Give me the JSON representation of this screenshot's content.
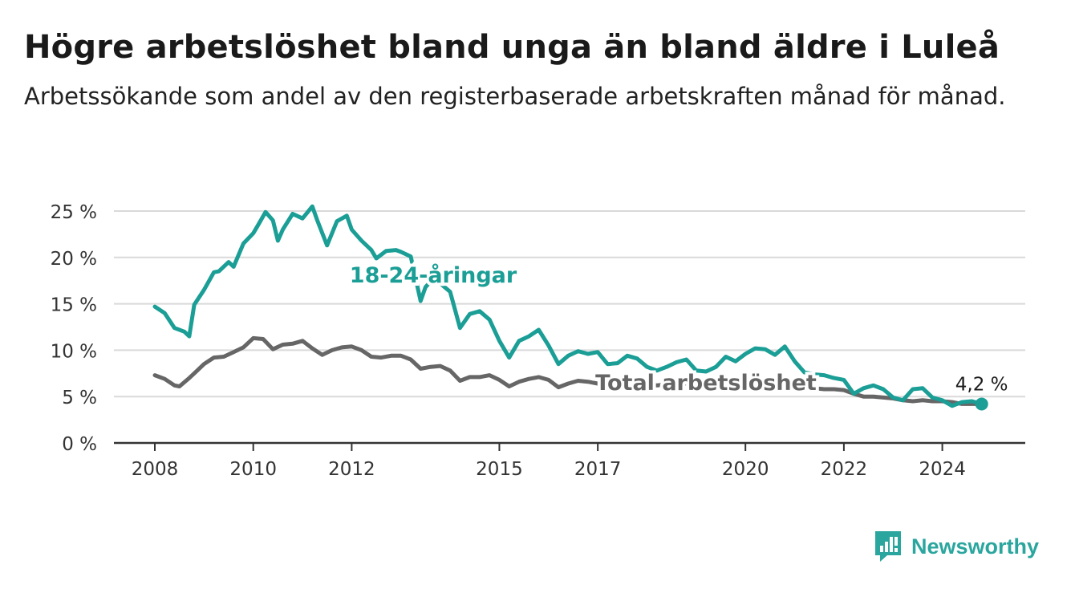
{
  "header": {
    "title": "Högre arbetslöshet bland unga än bland äldre i Luleå",
    "subtitle": "Arbetssökande som andel av den registerbaserade arbetskraften månad för månad."
  },
  "brand": {
    "name": "Newsworthy",
    "icon": "newsworthy-logo-icon",
    "color": "#2aa69e"
  },
  "chart_data": {
    "type": "line",
    "title": "Högre arbetslöshet bland unga än bland äldre i Luleå",
    "subtitle": "Arbetssökande som andel av den registerbaserade arbetskraften månad för månad.",
    "y_ticks": [
      "0 %",
      "5 %",
      "10 %",
      "15 %",
      "20 %",
      "25 %"
    ],
    "y_tick_values": [
      0,
      5,
      10,
      15,
      20,
      25
    ],
    "x_ticks": [
      "2008",
      "2010",
      "2012",
      "2015",
      "2017",
      "2020",
      "2022",
      "2024"
    ],
    "x_tick_values": [
      2008,
      2010,
      2012,
      2015,
      2017,
      2020,
      2022,
      2024
    ],
    "ylim": [
      0,
      25
    ],
    "xlim": [
      2007.2,
      2025.7
    ],
    "grid": true,
    "end_label": "4,2 %",
    "series": [
      {
        "name": "18-24-åringar",
        "color": "#1a9e96",
        "x": [
          2008.0,
          2008.2,
          2008.4,
          2008.6,
          2008.7,
          2008.8,
          2009.0,
          2009.2,
          2009.3,
          2009.5,
          2009.6,
          2009.8,
          2010.0,
          2010.1,
          2010.25,
          2010.4,
          2010.5,
          2010.6,
          2010.8,
          2011.0,
          2011.2,
          2011.3,
          2011.5,
          2011.7,
          2011.9,
          2012.0,
          2012.2,
          2012.4,
          2012.5,
          2012.7,
          2012.9,
          2013.0,
          2013.2,
          2013.4,
          2013.5,
          2013.6,
          2013.8,
          2014.0,
          2014.2,
          2014.4,
          2014.6,
          2014.8,
          2015.0,
          2015.2,
          2015.4,
          2015.6,
          2015.8,
          2016.0,
          2016.2,
          2016.4,
          2016.6,
          2016.8,
          2017.0,
          2017.2,
          2017.4,
          2017.6,
          2017.8,
          2018.0,
          2018.2,
          2018.4,
          2018.6,
          2018.8,
          2019.0,
          2019.2,
          2019.4,
          2019.6,
          2019.8,
          2020.0,
          2020.2,
          2020.4,
          2020.6,
          2020.8,
          2021.0,
          2021.2,
          2021.4,
          2021.6,
          2021.8,
          2022.0,
          2022.2,
          2022.4,
          2022.6,
          2022.8,
          2023.0,
          2023.2,
          2023.4,
          2023.6,
          2023.8,
          2024.0,
          2024.2,
          2024.4,
          2024.6,
          2024.8
        ],
        "values": [
          14.7,
          14.0,
          12.4,
          12.0,
          11.5,
          14.9,
          16.5,
          18.4,
          18.5,
          19.5,
          19.0,
          21.5,
          22.6,
          23.5,
          24.9,
          24.0,
          21.8,
          23.0,
          24.7,
          24.2,
          25.5,
          24.0,
          21.3,
          23.9,
          24.5,
          23.0,
          21.8,
          20.8,
          19.9,
          20.7,
          20.8,
          20.6,
          20.1,
          15.3,
          16.8,
          17.4,
          17.2,
          16.3,
          12.4,
          13.9,
          14.2,
          13.3,
          11.0,
          9.2,
          11.0,
          11.5,
          12.2,
          10.5,
          8.5,
          9.4,
          9.9,
          9.6,
          9.8,
          8.5,
          8.6,
          9.4,
          9.1,
          8.2,
          7.8,
          8.2,
          8.7,
          9.0,
          7.8,
          7.7,
          8.2,
          9.3,
          8.8,
          9.6,
          10.2,
          10.1,
          9.5,
          10.4,
          8.8,
          7.6,
          7.4,
          7.3,
          7.0,
          6.8,
          5.3,
          5.9,
          6.2,
          5.8,
          4.9,
          4.6,
          5.8,
          5.9,
          4.9,
          4.6,
          4.0,
          4.4,
          4.5,
          4.2
        ]
      },
      {
        "name": "Total arbetslöshet",
        "color": "#666666",
        "x": [
          2008.0,
          2008.2,
          2008.4,
          2008.5,
          2008.7,
          2008.8,
          2009.0,
          2009.2,
          2009.4,
          2009.6,
          2009.8,
          2010.0,
          2010.2,
          2010.4,
          2010.6,
          2010.8,
          2011.0,
          2011.2,
          2011.4,
          2011.6,
          2011.8,
          2012.0,
          2012.2,
          2012.4,
          2012.6,
          2012.8,
          2013.0,
          2013.2,
          2013.4,
          2013.6,
          2013.8,
          2014.0,
          2014.2,
          2014.4,
          2014.6,
          2014.8,
          2015.0,
          2015.2,
          2015.4,
          2015.6,
          2015.8,
          2016.0,
          2016.2,
          2016.4,
          2016.6,
          2016.8,
          2017.0,
          2017.2,
          2017.4,
          2017.6,
          2017.8,
          2018.0,
          2018.2,
          2018.4,
          2018.6,
          2018.8,
          2019.0,
          2019.2,
          2019.4,
          2019.6,
          2019.8,
          2020.0,
          2020.2,
          2020.4,
          2020.6,
          2020.8,
          2021.0,
          2021.2,
          2021.4,
          2021.6,
          2021.8,
          2022.0,
          2022.2,
          2022.4,
          2022.6,
          2022.8,
          2023.0,
          2023.2,
          2023.4,
          2023.6,
          2023.8,
          2024.0,
          2024.2,
          2024.4,
          2024.6,
          2024.8
        ],
        "values": [
          7.3,
          6.9,
          6.2,
          6.1,
          7.0,
          7.5,
          8.5,
          9.2,
          9.3,
          9.8,
          10.3,
          11.3,
          11.2,
          10.1,
          10.6,
          10.7,
          11.0,
          10.2,
          9.5,
          10.0,
          10.3,
          10.4,
          10.0,
          9.3,
          9.2,
          9.4,
          9.4,
          9.0,
          8.0,
          8.2,
          8.3,
          7.8,
          6.7,
          7.1,
          7.1,
          7.3,
          6.8,
          6.1,
          6.6,
          6.9,
          7.1,
          6.8,
          6.0,
          6.4,
          6.7,
          6.6,
          6.4,
          6.2,
          6.5,
          6.7,
          6.5,
          6.4,
          6.2,
          6.3,
          6.5,
          6.4,
          6.1,
          5.9,
          6.0,
          6.2,
          6.3,
          6.4,
          6.6,
          6.8,
          6.6,
          6.6,
          6.5,
          6.3,
          5.9,
          5.8,
          5.8,
          5.7,
          5.3,
          5.0,
          5.0,
          4.9,
          4.8,
          4.6,
          4.5,
          4.6,
          4.5,
          4.5,
          4.4,
          4.2,
          4.2,
          4.2
        ]
      }
    ]
  }
}
